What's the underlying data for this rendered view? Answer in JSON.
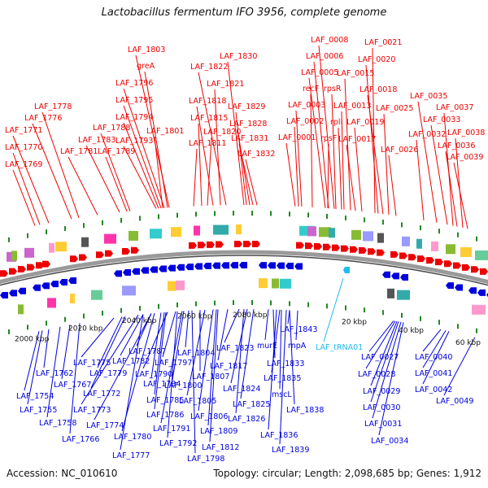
{
  "title": "Lactobacillus fermentum IFO 3956, complete genome",
  "footer": {
    "accession": "Accession: NC_010610",
    "summary": "Topology: circular; Length: 2,098,685 bp; Genes: 1,912"
  },
  "colors": {
    "forward": "#ee0000",
    "reverse": "#0000dd",
    "rna": "#22bbee",
    "backbone": "#888888",
    "tick": "#228822"
  },
  "scale_labels": [
    "2000 kbp",
    "2020 kbp",
    "2040 kbp",
    "2060 kbp",
    "2080 kbp",
    "20 kbp",
    "40 kbp",
    "60 kbp"
  ],
  "forward_labels": [
    "LAF_1803",
    "greA",
    "LAF_1796",
    "LAF_1795",
    "LAF_1794",
    "LAF_1793",
    "LAF_1801",
    "LAF_1788",
    "LAF_1783",
    "LAF_1789",
    "LAF_1781",
    "LAF_1778",
    "LAF_1776",
    "LAF_1771",
    "LAF_1770",
    "LAF_1769",
    "LAF_1822",
    "LAF_1821",
    "LAF_1818",
    "LAF_1815",
    "LAF_1811",
    "LAF_1820",
    "LAF_1830",
    "LAF_1829",
    "LAF_1828",
    "LAF_1831",
    "LAF_1832",
    "LAF_0008",
    "LAF_0006",
    "LAF_0005",
    "recF",
    "rpsR",
    "LAF_0003",
    "LAF_0002",
    "LAF_0001",
    "rpsF",
    "LAF_0015",
    "LAF_0013",
    "rplI",
    "LAF_0019",
    "LAF_0017",
    "LAF_0021",
    "LAF_0020",
    "LAF_0018",
    "LAF_0025",
    "LAF_0035",
    "LAF_0037",
    "LAF_0033",
    "LAF_0032",
    "LAF_0038",
    "LAF_0036",
    "LAF_0026",
    "LAF_0039"
  ],
  "reverse_labels": [
    "LAF_1762",
    "LAF_1767",
    "LAF_1754",
    "LAF_1755",
    "LAF_1758",
    "LAF_1766",
    "LAF_1775",
    "LAF_1772",
    "LAF_1773",
    "LAF_1774",
    "LAF_1779",
    "LAF_1782",
    "LAF_1787",
    "LAF_1784",
    "LAF_1785",
    "LAF_1786",
    "LAF_1780",
    "LAF_1777",
    "LAF_1791",
    "LAF_1792",
    "LAF_1798",
    "LAF_1790",
    "LAF_1797",
    "LAF_1800",
    "LAF_1804",
    "LAF_1807",
    "LAF_1805",
    "LAF_1806",
    "LAF_1809",
    "LAF_1812",
    "LAF_1817",
    "LAF_1823",
    "LAF_1824",
    "LAF_1825",
    "LAF_1826",
    "LAF_1833",
    "LAF_1835",
    "murE",
    "LAF_1843",
    "rnpA",
    "mscL",
    "LAF_1838",
    "LAF_1836",
    "LAF_1839",
    "LAF_0027",
    "LAF_0028",
    "LAF_0029",
    "LAF_0030",
    "LAF_0031",
    "LAF_0034",
    "LAF_0040",
    "LAF_0041",
    "LAF_0042",
    "LAF_0049"
  ],
  "rna_labels": [
    "LAF_tRNA01"
  ]
}
